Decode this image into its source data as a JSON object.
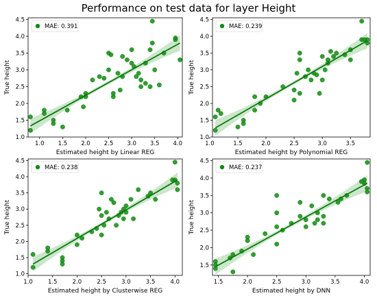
{
  "figure": {
    "title": "Performance on test data for layer Height"
  },
  "style": {
    "point_color": "#138a13",
    "line_color": "#0a7a0a",
    "band_color": "#b5dcb5"
  },
  "chart_data": [
    {
      "type": "scatter",
      "xlabel": "Estimated height by Linear REG",
      "ylabel": "True height",
      "legend": "MAE: 0.391",
      "legend_position": "top-left",
      "xlim": [
        0.75,
        4.1
      ],
      "ylim": [
        1.0,
        4.55
      ],
      "xticks": [
        "1.0",
        "1.5",
        "2.0",
        "2.5",
        "3.0",
        "3.5",
        "4.0"
      ],
      "yticks": [
        "1.0",
        "1.5",
        "2.0",
        "2.5",
        "3.0",
        "3.5",
        "4.0",
        "4.5"
      ],
      "fit": {
        "x": [
          0.8,
          4.05
        ],
        "y": [
          1.33,
          3.8
        ]
      },
      "points": [
        [
          0.8,
          1.6
        ],
        [
          0.8,
          1.2
        ],
        [
          1.1,
          1.8
        ],
        [
          1.1,
          1.7
        ],
        [
          1.3,
          1.5
        ],
        [
          1.3,
          1.4
        ],
        [
          1.5,
          1.3
        ],
        [
          1.6,
          1.8
        ],
        [
          1.9,
          2.2
        ],
        [
          1.95,
          1.9
        ],
        [
          2.0,
          2.2
        ],
        [
          2.0,
          2.3
        ],
        [
          2.15,
          2.7
        ],
        [
          2.3,
          2.8
        ],
        [
          2.4,
          2.75
        ],
        [
          2.5,
          3.0
        ],
        [
          2.5,
          3.5
        ],
        [
          2.55,
          3.45
        ],
        [
          2.6,
          2.3
        ],
        [
          2.6,
          2.2
        ],
        [
          2.7,
          2.9
        ],
        [
          2.75,
          2.4
        ],
        [
          2.8,
          3.4
        ],
        [
          2.8,
          2.8
        ],
        [
          2.9,
          3.3
        ],
        [
          3.0,
          3.6
        ],
        [
          3.0,
          3.2
        ],
        [
          3.05,
          3.1
        ],
        [
          3.1,
          2.8
        ],
        [
          3.15,
          2.9
        ],
        [
          3.2,
          2.7
        ],
        [
          3.2,
          2.5
        ],
        [
          3.3,
          2.6
        ],
        [
          3.3,
          3.2
        ],
        [
          3.4,
          2.5
        ],
        [
          3.4,
          3.6
        ],
        [
          3.45,
          4.45
        ],
        [
          3.45,
          3.8
        ],
        [
          3.5,
          3.0
        ],
        [
          3.6,
          2.55
        ],
        [
          3.7,
          3.5
        ],
        [
          3.95,
          3.95
        ],
        [
          3.95,
          3.9
        ],
        [
          4.05,
          3.3
        ]
      ]
    },
    {
      "type": "scatter",
      "xlabel": "Estimated height by Polynomial REG",
      "ylabel": "True height",
      "legend": "MAE: 0.239",
      "legend_position": "top-left",
      "xlim": [
        1.05,
        3.85
      ],
      "ylim": [
        1.0,
        4.55
      ],
      "xticks": [
        "1.0",
        "1.5",
        "2.0",
        "2.5",
        "3.0",
        "3.5"
      ],
      "yticks": [
        "1.0",
        "1.5",
        "2.0",
        "2.5",
        "3.0",
        "3.5",
        "4.0",
        "4.5"
      ],
      "fit": {
        "x": [
          1.1,
          3.8
        ],
        "y": [
          1.27,
          3.87
        ]
      },
      "points": [
        [
          1.1,
          1.6
        ],
        [
          1.1,
          1.2
        ],
        [
          1.15,
          1.8
        ],
        [
          1.2,
          1.7
        ],
        [
          1.5,
          1.3
        ],
        [
          1.6,
          1.5
        ],
        [
          1.6,
          1.4
        ],
        [
          1.8,
          1.8
        ],
        [
          1.8,
          2.2
        ],
        [
          1.9,
          2.0
        ],
        [
          2.0,
          2.2
        ],
        [
          2.3,
          2.5
        ],
        [
          2.5,
          2.1
        ],
        [
          2.5,
          2.4
        ],
        [
          2.55,
          2.9
        ],
        [
          2.6,
          3.5
        ],
        [
          2.6,
          3.3
        ],
        [
          2.6,
          2.3
        ],
        [
          2.7,
          2.8
        ],
        [
          2.75,
          3.0
        ],
        [
          2.8,
          2.7
        ],
        [
          2.85,
          2.9
        ],
        [
          2.9,
          2.85
        ],
        [
          2.95,
          2.3
        ],
        [
          3.0,
          3.4
        ],
        [
          3.0,
          2.7
        ],
        [
          3.05,
          3.0
        ],
        [
          3.1,
          3.2
        ],
        [
          3.1,
          3.3
        ],
        [
          3.15,
          3.55
        ],
        [
          3.2,
          3.4
        ],
        [
          3.25,
          3.5
        ],
        [
          3.4,
          3.45
        ],
        [
          3.5,
          3.3
        ],
        [
          3.5,
          3.6
        ],
        [
          3.7,
          3.9
        ],
        [
          3.7,
          4.45
        ],
        [
          3.75,
          3.9
        ],
        [
          3.8,
          3.8
        ],
        [
          3.8,
          3.9
        ]
      ]
    },
    {
      "type": "scatter",
      "xlabel": "Estimated height by Clusterwise REG",
      "ylabel": "True height",
      "legend": "MAE: 0.238",
      "legend_position": "top-left",
      "xlim": [
        1.0,
        4.15
      ],
      "ylim": [
        0.95,
        4.55
      ],
      "xticks": [
        "1.0",
        "1.5",
        "2.0",
        "2.5",
        "3.0",
        "3.5",
        "4.0"
      ],
      "yticks": [
        "1.0",
        "1.5",
        "2.0",
        "2.5",
        "3.0",
        "3.5",
        "4.0",
        "4.5"
      ],
      "fit": {
        "x": [
          1.1,
          4.05
        ],
        "y": [
          1.3,
          3.9
        ]
      },
      "points": [
        [
          1.1,
          1.6
        ],
        [
          1.1,
          1.2
        ],
        [
          1.4,
          1.8
        ],
        [
          1.4,
          1.7
        ],
        [
          1.7,
          1.5
        ],
        [
          1.7,
          1.3
        ],
        [
          1.7,
          1.4
        ],
        [
          2.0,
          2.2
        ],
        [
          2.0,
          1.9
        ],
        [
          2.1,
          2.1
        ],
        [
          2.3,
          2.3
        ],
        [
          2.4,
          2.4
        ],
        [
          2.45,
          3.0
        ],
        [
          2.5,
          2.8
        ],
        [
          2.5,
          3.5
        ],
        [
          2.5,
          2.2
        ],
        [
          2.55,
          2.5
        ],
        [
          2.6,
          2.9
        ],
        [
          2.65,
          2.7
        ],
        [
          2.7,
          3.3
        ],
        [
          2.75,
          3.2
        ],
        [
          2.8,
          2.5
        ],
        [
          2.85,
          2.8
        ],
        [
          2.9,
          2.9
        ],
        [
          2.95,
          3.0
        ],
        [
          2.95,
          2.7
        ],
        [
          3.0,
          3.1
        ],
        [
          3.0,
          2.9
        ],
        [
          3.1,
          3.3
        ],
        [
          3.15,
          2.7
        ],
        [
          3.25,
          3.6
        ],
        [
          3.45,
          3.4
        ],
        [
          3.5,
          3.5
        ],
        [
          3.6,
          3.3
        ],
        [
          3.95,
          3.9
        ],
        [
          4.0,
          4.45
        ],
        [
          4.0,
          3.9
        ],
        [
          4.05,
          3.8
        ],
        [
          4.05,
          3.6
        ]
      ]
    },
    {
      "type": "scatter",
      "xlabel": "Estimated height by DNN",
      "ylabel": "True height",
      "legend": "MAE: 0.237",
      "legend_position": "top-left",
      "xlim": [
        1.4,
        4.1
      ],
      "ylim": [
        1.2,
        4.55
      ],
      "xticks": [
        "1.5",
        "2.0",
        "2.5",
        "3.0",
        "3.5",
        "4.0"
      ],
      "yticks": [
        "1.5",
        "2.0",
        "2.5",
        "3.0",
        "3.5",
        "4.0",
        "4.5"
      ],
      "fit": {
        "x": [
          1.45,
          4.05
        ],
        "y": [
          1.45,
          3.85
        ]
      },
      "points": [
        [
          1.45,
          1.6
        ],
        [
          1.45,
          1.5
        ],
        [
          1.45,
          1.4
        ],
        [
          1.7,
          1.7
        ],
        [
          1.75,
          1.8
        ],
        [
          1.75,
          1.3
        ],
        [
          1.9,
          1.9
        ],
        [
          2.0,
          2.2
        ],
        [
          2.0,
          2.3
        ],
        [
          2.1,
          1.8
        ],
        [
          2.3,
          2.4
        ],
        [
          2.5,
          2.6
        ],
        [
          2.5,
          3.5
        ],
        [
          2.5,
          3.0
        ],
        [
          2.5,
          2.1
        ],
        [
          2.6,
          2.5
        ],
        [
          2.75,
          2.7
        ],
        [
          2.9,
          3.3
        ],
        [
          2.9,
          2.9
        ],
        [
          3.0,
          2.6
        ],
        [
          3.0,
          2.8
        ],
        [
          3.1,
          3.2
        ],
        [
          3.15,
          2.7
        ],
        [
          3.2,
          2.8
        ],
        [
          3.2,
          3.0
        ],
        [
          3.3,
          2.7
        ],
        [
          3.3,
          2.9
        ],
        [
          3.3,
          3.5
        ],
        [
          3.4,
          3.4
        ],
        [
          3.55,
          3.3
        ],
        [
          3.6,
          3.4
        ],
        [
          3.7,
          3.5
        ],
        [
          3.95,
          3.9
        ],
        [
          4.0,
          3.95
        ],
        [
          4.0,
          3.85
        ],
        [
          4.05,
          4.45
        ],
        [
          4.05,
          3.7
        ],
        [
          4.05,
          3.6
        ]
      ]
    }
  ]
}
